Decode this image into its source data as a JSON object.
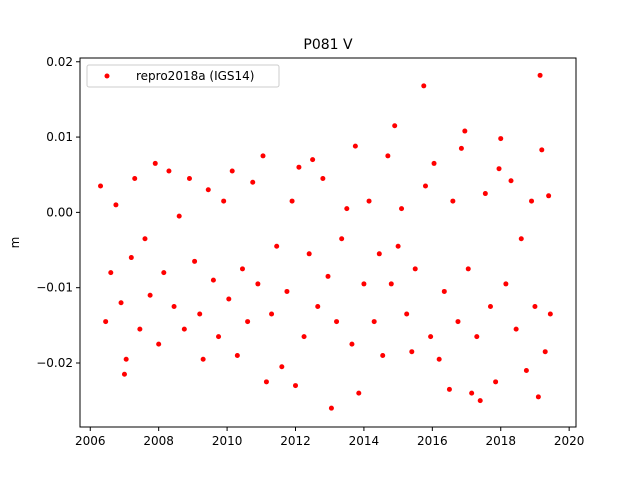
{
  "chart_data": {
    "type": "scatter",
    "title": "P081 V",
    "xlabel": "",
    "ylabel": "m",
    "xlim": [
      2005.7,
      2020.2
    ],
    "ylim": [
      -0.0285,
      0.0205
    ],
    "xticks": [
      2006,
      2008,
      2010,
      2012,
      2014,
      2016,
      2018,
      2020
    ],
    "xtick_labels": [
      "2006",
      "2008",
      "2010",
      "2012",
      "2014",
      "2016",
      "2018",
      "2020"
    ],
    "yticks": [
      -0.02,
      -0.01,
      0.0,
      0.01,
      0.02
    ],
    "ytick_labels": [
      "−0.02",
      "−0.01",
      "0.00",
      "0.01",
      "0.02"
    ],
    "grid": false,
    "legend_position": "top-left",
    "series": [
      {
        "name": "repro2018a (IGS14)",
        "color": "#ff0000",
        "marker": "dot",
        "points": [
          [
            2006.3,
            0.0035
          ],
          [
            2006.45,
            -0.0145
          ],
          [
            2006.6,
            -0.008
          ],
          [
            2006.75,
            0.001
          ],
          [
            2006.9,
            -0.012
          ],
          [
            2007.0,
            -0.0215
          ],
          [
            2007.05,
            -0.0195
          ],
          [
            2007.2,
            -0.006
          ],
          [
            2007.3,
            0.0045
          ],
          [
            2007.45,
            -0.0155
          ],
          [
            2007.6,
            -0.0035
          ],
          [
            2007.75,
            -0.011
          ],
          [
            2007.9,
            0.0065
          ],
          [
            2008.0,
            -0.0175
          ],
          [
            2008.15,
            -0.008
          ],
          [
            2008.3,
            0.0055
          ],
          [
            2008.45,
            -0.0125
          ],
          [
            2008.6,
            -0.0005
          ],
          [
            2008.75,
            -0.0155
          ],
          [
            2008.9,
            0.0045
          ],
          [
            2009.05,
            -0.0065
          ],
          [
            2009.2,
            -0.0135
          ],
          [
            2009.3,
            -0.0195
          ],
          [
            2009.45,
            0.003
          ],
          [
            2009.6,
            -0.009
          ],
          [
            2009.75,
            -0.0165
          ],
          [
            2009.9,
            0.0015
          ],
          [
            2010.05,
            -0.0115
          ],
          [
            2010.15,
            0.0055
          ],
          [
            2010.3,
            -0.019
          ],
          [
            2010.45,
            -0.0075
          ],
          [
            2010.6,
            -0.0145
          ],
          [
            2010.75,
            0.004
          ],
          [
            2010.9,
            -0.0095
          ],
          [
            2011.05,
            0.0075
          ],
          [
            2011.15,
            -0.0225
          ],
          [
            2011.3,
            -0.0135
          ],
          [
            2011.45,
            -0.0045
          ],
          [
            2011.6,
            -0.0205
          ],
          [
            2011.75,
            -0.0105
          ],
          [
            2011.9,
            0.0015
          ],
          [
            2012.0,
            -0.023
          ],
          [
            2012.1,
            0.006
          ],
          [
            2012.25,
            -0.0165
          ],
          [
            2012.4,
            -0.0055
          ],
          [
            2012.5,
            0.007
          ],
          [
            2012.65,
            -0.0125
          ],
          [
            2012.8,
            0.0045
          ],
          [
            2012.95,
            -0.0085
          ],
          [
            2013.05,
            -0.026
          ],
          [
            2013.2,
            -0.0145
          ],
          [
            2013.35,
            -0.0035
          ],
          [
            2013.5,
            0.0005
          ],
          [
            2013.65,
            -0.0175
          ],
          [
            2013.75,
            0.0088
          ],
          [
            2013.85,
            -0.024
          ],
          [
            2014.0,
            -0.0095
          ],
          [
            2014.15,
            0.0015
          ],
          [
            2014.3,
            -0.0145
          ],
          [
            2014.45,
            -0.0055
          ],
          [
            2014.55,
            -0.019
          ],
          [
            2014.7,
            0.0075
          ],
          [
            2014.8,
            -0.0095
          ],
          [
            2014.9,
            0.0115
          ],
          [
            2015.0,
            -0.0045
          ],
          [
            2015.1,
            0.0005
          ],
          [
            2015.25,
            -0.0135
          ],
          [
            2015.4,
            -0.0185
          ],
          [
            2015.5,
            -0.0075
          ],
          [
            2015.75,
            0.0168
          ],
          [
            2015.8,
            0.0035
          ],
          [
            2015.95,
            -0.0165
          ],
          [
            2016.05,
            0.0065
          ],
          [
            2016.2,
            -0.0195
          ],
          [
            2016.35,
            -0.0105
          ],
          [
            2016.5,
            -0.0235
          ],
          [
            2016.6,
            0.0015
          ],
          [
            2016.75,
            -0.0145
          ],
          [
            2016.85,
            0.0085
          ],
          [
            2016.95,
            0.0108
          ],
          [
            2017.05,
            -0.0075
          ],
          [
            2017.15,
            -0.024
          ],
          [
            2017.3,
            -0.0165
          ],
          [
            2017.4,
            -0.025
          ],
          [
            2017.55,
            0.0025
          ],
          [
            2017.7,
            -0.0125
          ],
          [
            2017.85,
            -0.0225
          ],
          [
            2017.95,
            0.0058
          ],
          [
            2018.0,
            0.0098
          ],
          [
            2018.15,
            -0.0095
          ],
          [
            2018.3,
            0.0042
          ],
          [
            2018.45,
            -0.0155
          ],
          [
            2018.6,
            -0.0035
          ],
          [
            2018.75,
            -0.021
          ],
          [
            2018.9,
            0.0015
          ],
          [
            2019.0,
            -0.0125
          ],
          [
            2019.1,
            -0.0245
          ],
          [
            2019.15,
            0.0182
          ],
          [
            2019.2,
            0.0083
          ],
          [
            2019.3,
            -0.0185
          ],
          [
            2019.4,
            0.0022
          ],
          [
            2019.45,
            -0.0135
          ]
        ]
      }
    ]
  }
}
